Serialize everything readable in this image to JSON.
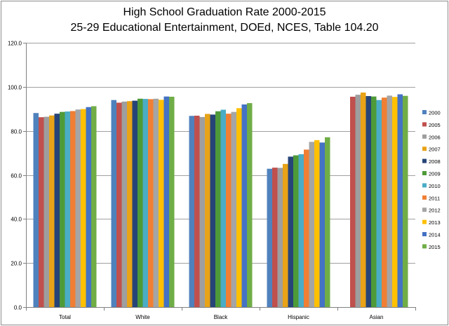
{
  "chart_data": {
    "type": "bar",
    "title": "High School Graduation Rate 2000-2015",
    "subtitle": "25-29 Educational Entertainment, DOEd, NCES, Table 104.20",
    "categories": [
      "Total",
      "White",
      "Black",
      "Hispanic",
      "Asian"
    ],
    "ylim": [
      0,
      120
    ],
    "yticks": [
      "0.0",
      "20.0",
      "40.0",
      "60.0",
      "80.0",
      "100.0",
      "120.0"
    ],
    "grid": true,
    "legend_position": "right",
    "series": [
      {
        "name": "2000",
        "color": "#4f81bd",
        "values": [
          88.1,
          94.0,
          86.8,
          62.8,
          null
        ]
      },
      {
        "name": "2005",
        "color": "#c0504d",
        "values": [
          86.2,
          92.8,
          86.9,
          63.3,
          95.5
        ]
      },
      {
        "name": "2006",
        "color": "#9e9e9e",
        "values": [
          86.4,
          93.3,
          86.3,
          63.2,
          96.4
        ]
      },
      {
        "name": "2007",
        "color": "#e8a317",
        "values": [
          87.0,
          93.5,
          87.7,
          65.0,
          97.4
        ]
      },
      {
        "name": "2008",
        "color": "#264478",
        "values": [
          87.8,
          93.7,
          87.4,
          68.3,
          95.8
        ]
      },
      {
        "name": "2009",
        "color": "#4e9a38",
        "values": [
          88.6,
          94.6,
          88.9,
          68.9,
          95.6
        ]
      },
      {
        "name": "2010",
        "color": "#4bacc6",
        "values": [
          88.8,
          94.5,
          89.6,
          69.4,
          94.0
        ]
      },
      {
        "name": "2011",
        "color": "#f07f34",
        "values": [
          89.0,
          94.4,
          87.8,
          71.5,
          95.1
        ]
      },
      {
        "name": "2012",
        "color": "#a5a5a5",
        "values": [
          89.7,
          94.6,
          88.6,
          75.0,
          96.0
        ]
      },
      {
        "name": "2013",
        "color": "#ffc000",
        "values": [
          89.9,
          94.1,
          90.3,
          75.8,
          95.4
        ]
      },
      {
        "name": "2014",
        "color": "#4472c4",
        "values": [
          90.8,
          95.6,
          92.0,
          74.7,
          96.6
        ]
      },
      {
        "name": "2015",
        "color": "#70ad47",
        "values": [
          91.2,
          95.5,
          92.6,
          77.1,
          95.9
        ]
      }
    ]
  }
}
